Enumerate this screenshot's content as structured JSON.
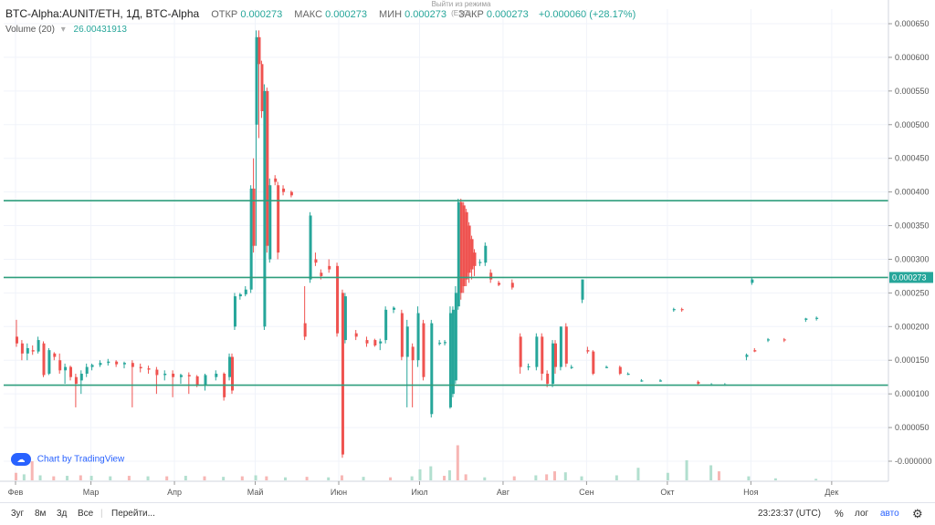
{
  "legend": {
    "symbol": "BTC-Alpha:AUNIT/ETH, 1Д, BTC-Alpha",
    "open_label": "ОТКР",
    "open": "0.000273",
    "high_label": "МАКС",
    "high": "0.000273",
    "low_label": "МИН",
    "low": "0.000273",
    "close_label": "ЗАКР",
    "close": "0.000273",
    "change": "+0.000060 (+28.17%)"
  },
  "volume": {
    "label": "Volume (20)",
    "value": "26.00431913"
  },
  "exit_hint": "Выйти из режима (ESC)",
  "tv_logo": "Chart by TradingView",
  "bottombar": {
    "timeframes": [
      "3уг",
      "8м",
      "3д",
      "Все"
    ],
    "goto": "Перейти...",
    "time": "23:23:37 (UTC)",
    "percent": "%",
    "log": "лог",
    "auto": "авто"
  },
  "colors": {
    "up": "#26a69a",
    "down": "#ef5350",
    "hline": "#2e9e7c",
    "price_tag": "#26a69a"
  },
  "chart_data": {
    "type": "candlestick",
    "x_labels": [
      "Фев",
      "Мар",
      "Апр",
      "Май",
      "Июн",
      "Июл",
      "Авг",
      "Сен",
      "Окт",
      "Ноя",
      "Дек"
    ],
    "y_ticks": [
      "0.000650",
      "0.000600",
      "0.000550",
      "0.000500",
      "0.000450",
      "0.000400",
      "0.000350",
      "0.000300",
      "0.000250",
      "0.000200",
      "0.000150",
      "0.000100",
      "0.000050",
      "-0.000000"
    ],
    "ylim": [
      0,
      0.00068
    ],
    "last_price_label": "0.000273",
    "horizontal_lines": [
      0.000387,
      0.000273,
      0.000113
    ],
    "grid": true,
    "candles": [
      {
        "d": "02-01",
        "o": 0.000185,
        "h": 0.00021,
        "l": 0.00017,
        "c": 0.000175
      },
      {
        "d": "02-03",
        "o": 0.000175,
        "h": 0.00018,
        "l": 0.00015,
        "c": 0.00016
      },
      {
        "d": "02-05",
        "o": 0.00016,
        "h": 0.000175,
        "l": 0.00015,
        "c": 0.000168
      },
      {
        "d": "02-07",
        "o": 0.000165,
        "h": 0.000172,
        "l": 0.000158,
        "c": 0.000163
      },
      {
        "d": "02-09",
        "o": 0.000163,
        "h": 0.000185,
        "l": 0.00016,
        "c": 0.00018
      },
      {
        "d": "02-11",
        "o": 0.000175,
        "h": 0.000178,
        "l": 0.000125,
        "c": 0.000128
      },
      {
        "d": "02-13",
        "o": 0.00013,
        "h": 0.000168,
        "l": 0.000128,
        "c": 0.000165
      },
      {
        "d": "02-15",
        "o": 0.00016,
        "h": 0.000162,
        "l": 0.00015,
        "c": 0.000155
      },
      {
        "d": "02-17",
        "o": 0.00015,
        "h": 0.00016,
        "l": 0.00013,
        "c": 0.000135
      },
      {
        "d": "02-19",
        "o": 0.000135,
        "h": 0.000145,
        "l": 0.000115,
        "c": 0.00014
      },
      {
        "d": "02-21",
        "o": 0.00014,
        "h": 0.000142,
        "l": 0.00012,
        "c": 0.000125
      },
      {
        "d": "02-23",
        "o": 0.000125,
        "h": 0.00013,
        "l": 8e-05,
        "c": 0.000115
      },
      {
        "d": "02-25",
        "o": 0.00012,
        "h": 0.000135,
        "l": 0.0001,
        "c": 0.00013
      },
      {
        "d": "02-27",
        "o": 0.00013,
        "h": 0.000145,
        "l": 0.000125,
        "c": 0.00014
      },
      {
        "d": "03-01",
        "o": 0.00014,
        "h": 0.000145,
        "l": 0.000135,
        "c": 0.000143
      },
      {
        "d": "03-04",
        "o": 0.000143,
        "h": 0.00015,
        "l": 0.00014,
        "c": 0.000146
      },
      {
        "d": "03-07",
        "o": 0.000146,
        "h": 0.000152,
        "l": 0.000142,
        "c": 0.000148
      },
      {
        "d": "03-10",
        "o": 0.000148,
        "h": 0.00015,
        "l": 0.00014,
        "c": 0.000144
      },
      {
        "d": "03-13",
        "o": 0.000144,
        "h": 0.000148,
        "l": 0.000138,
        "c": 0.000146
      },
      {
        "d": "03-16",
        "o": 0.000146,
        "h": 0.00015,
        "l": 8e-05,
        "c": 0.00014
      },
      {
        "d": "03-19",
        "o": 0.00014,
        "h": 0.000145,
        "l": 0.000132,
        "c": 0.000138
      },
      {
        "d": "03-22",
        "o": 0.000138,
        "h": 0.000142,
        "l": 0.00013,
        "c": 0.000136
      },
      {
        "d": "03-25",
        "o": 0.000136,
        "h": 0.00014,
        "l": 0.0001,
        "c": 0.000128
      },
      {
        "d": "03-28",
        "o": 0.000128,
        "h": 0.000135,
        "l": 0.00012,
        "c": 0.00013
      },
      {
        "d": "03-31",
        "o": 0.00013,
        "h": 0.000135,
        "l": 9.5e-05,
        "c": 0.000125
      },
      {
        "d": "04-03",
        "o": 0.000125,
        "h": 0.00013,
        "l": 0.000115,
        "c": 0.000128
      },
      {
        "d": "04-06",
        "o": 0.000128,
        "h": 0.000132,
        "l": 0.0001,
        "c": 0.000126
      },
      {
        "d": "04-09",
        "o": 0.000126,
        "h": 0.000128,
        "l": 0.00011,
        "c": 0.000112
      },
      {
        "d": "04-12",
        "o": 0.000112,
        "h": 0.00013,
        "l": 0.000105,
        "c": 0.000128
      },
      {
        "d": "04-16",
        "o": 0.000125,
        "h": 0.000135,
        "l": 0.00012,
        "c": 0.00013
      },
      {
        "d": "04-19",
        "o": 0.00013,
        "h": 0.000132,
        "l": 9e-05,
        "c": 9.5e-05
      },
      {
        "d": "04-21",
        "o": 0.000125,
        "h": 0.00016,
        "l": 0.00012,
        "c": 0.000155
      },
      {
        "d": "04-22",
        "o": 0.000155,
        "h": 0.00016,
        "l": 0.0001,
        "c": 0.000105
      },
      {
        "d": "04-23",
        "o": 0.0002,
        "h": 0.00025,
        "l": 0.000195,
        "c": 0.000245
      },
      {
        "d": "04-25",
        "o": 0.000245,
        "h": 0.00025,
        "l": 0.00024,
        "c": 0.000248
      },
      {
        "d": "04-27",
        "o": 0.000248,
        "h": 0.00026,
        "l": 0.000245,
        "c": 0.000255
      },
      {
        "d": "04-29",
        "o": 0.000255,
        "h": 0.00041,
        "l": 0.00025,
        "c": 0.000405
      },
      {
        "d": "04-30",
        "o": 0.000405,
        "h": 0.00045,
        "l": 0.00031,
        "c": 0.00032
      },
      {
        "d": "05-01",
        "o": 0.0005,
        "h": 0.00064,
        "l": 0.00032,
        "c": 0.00063
      },
      {
        "d": "05-02",
        "o": 0.00063,
        "h": 0.00064,
        "l": 0.00048,
        "c": 0.00059
      },
      {
        "d": "05-03",
        "o": 0.00059,
        "h": 0.000595,
        "l": 0.00051,
        "c": 0.00052
      },
      {
        "d": "05-04",
        "o": 0.0002,
        "h": 0.00056,
        "l": 0.000195,
        "c": 0.00055
      },
      {
        "d": "05-05",
        "o": 0.00055,
        "h": 0.000555,
        "l": 0.00031,
        "c": 0.00032
      },
      {
        "d": "05-06",
        "o": 0.0003,
        "h": 0.00042,
        "l": 0.000295,
        "c": 0.00041
      },
      {
        "d": "05-08",
        "o": 0.00042,
        "h": 0.000425,
        "l": 0.00041,
        "c": 0.000415
      },
      {
        "d": "05-09",
        "o": 0.00041,
        "h": 0.000415,
        "l": 0.0003,
        "c": 0.00031
      },
      {
        "d": "05-11",
        "o": 0.000405,
        "h": 0.00041,
        "l": 0.000395,
        "c": 0.0004
      },
      {
        "d": "05-14",
        "o": 0.0004,
        "h": 0.000402,
        "l": 0.000392,
        "c": 0.000395
      },
      {
        "d": "05-19",
        "o": 0.000205,
        "h": 0.00026,
        "l": 0.00018,
        "c": 0.000185
      },
      {
        "d": "05-21",
        "o": 0.00027,
        "h": 0.00037,
        "l": 0.000265,
        "c": 0.000365
      },
      {
        "d": "05-23",
        "o": 0.0003,
        "h": 0.00031,
        "l": 0.00029,
        "c": 0.000295
      },
      {
        "d": "05-25",
        "o": 0.00028,
        "h": 0.000285,
        "l": 0.00027,
        "c": 0.000275
      },
      {
        "d": "05-28",
        "o": 0.00029,
        "h": 0.0003,
        "l": 0.00028,
        "c": 0.000285
      },
      {
        "d": "05-31",
        "o": 0.00029,
        "h": 0.000295,
        "l": 0.000185,
        "c": 0.00019
      },
      {
        "d": "06-02",
        "o": 0.00025,
        "h": 0.000255,
        "l": 5e-06,
        "c": 1e-05
      },
      {
        "d": "06-03",
        "o": 0.00018,
        "h": 0.00025,
        "l": 0.000175,
        "c": 0.000245
      },
      {
        "d": "06-07",
        "o": 0.00019,
        "h": 0.000195,
        "l": 0.00018,
        "c": 0.000185
      },
      {
        "d": "06-11",
        "o": 0.00018,
        "h": 0.000185,
        "l": 0.00017,
        "c": 0.000175
      },
      {
        "d": "06-14",
        "o": 0.00018,
        "h": 0.000182,
        "l": 0.00017,
        "c": 0.000172
      },
      {
        "d": "06-16",
        "o": 0.000175,
        "h": 0.000182,
        "l": 0.000165,
        "c": 0.000178
      },
      {
        "d": "06-18",
        "o": 0.00018,
        "h": 0.00023,
        "l": 0.000175,
        "c": 0.000225
      },
      {
        "d": "06-21",
        "o": 0.000225,
        "h": 0.00023,
        "l": 0.00022,
        "c": 0.000228
      },
      {
        "d": "06-24",
        "o": 0.00022,
        "h": 0.000225,
        "l": 0.00015,
        "c": 0.000155
      },
      {
        "d": "06-26",
        "o": 0.000155,
        "h": 0.00021,
        "l": 8e-05,
        "c": 0.0002
      },
      {
        "d": "06-28",
        "o": 0.00017,
        "h": 0.000175,
        "l": 8e-05,
        "c": 0.00015
      },
      {
        "d": "06-30",
        "o": 0.00015,
        "h": 0.00023,
        "l": 0.00014,
        "c": 0.00022
      },
      {
        "d": "07-02",
        "o": 0.000205,
        "h": 0.00021,
        "l": 0.00012,
        "c": 0.000125
      },
      {
        "d": "07-05",
        "o": 7e-05,
        "h": 0.00021,
        "l": 6.5e-05,
        "c": 0.000205
      },
      {
        "d": "07-08",
        "o": 0.000175,
        "h": 0.00018,
        "l": 0.000172,
        "c": 0.000176
      },
      {
        "d": "07-10",
        "o": 0.000176,
        "h": 0.00018,
        "l": 0.000172,
        "c": 0.000177
      },
      {
        "d": "07-12",
        "o": 8e-05,
        "h": 0.00023,
        "l": 7.8e-05,
        "c": 0.00022
      },
      {
        "d": "07-13",
        "o": 0.0001,
        "h": 0.00023,
        "l": 9.5e-05,
        "c": 0.000225
      },
      {
        "d": "07-14",
        "o": 0.00012,
        "h": 0.00026,
        "l": 0.000115,
        "c": 0.00025
      },
      {
        "d": "07-15",
        "o": 0.00023,
        "h": 0.00039,
        "l": 0.000225,
        "c": 0.000385
      },
      {
        "d": "07-16",
        "o": 0.000385,
        "h": 0.00039,
        "l": 0.00024,
        "c": 0.00025
      },
      {
        "d": "07-17",
        "o": 0.00038,
        "h": 0.000385,
        "l": 0.00025,
        "c": 0.00026
      },
      {
        "d": "07-18",
        "o": 0.00037,
        "h": 0.000375,
        "l": 0.00026,
        "c": 0.00027
      },
      {
        "d": "07-19",
        "o": 0.00035,
        "h": 0.000355,
        "l": 0.000265,
        "c": 0.00028
      },
      {
        "d": "07-20",
        "o": 0.00033,
        "h": 0.000335,
        "l": 0.00027,
        "c": 0.000285
      },
      {
        "d": "07-21",
        "o": 0.00031,
        "h": 0.000315,
        "l": 0.000275,
        "c": 0.00029
      },
      {
        "d": "07-23",
        "o": 0.000295,
        "h": 0.0003,
        "l": 0.00029,
        "c": 0.000296
      },
      {
        "d": "07-25",
        "o": 0.000295,
        "h": 0.000325,
        "l": 0.00029,
        "c": 0.00032
      },
      {
        "d": "07-27",
        "o": 0.00028,
        "h": 0.000285,
        "l": 0.000265,
        "c": 0.00027
      },
      {
        "d": "07-30",
        "o": 0.000265,
        "h": 0.000268,
        "l": 0.00026,
        "c": 0.000262
      },
      {
        "d": "08-04",
        "o": 0.000265,
        "h": 0.00027,
        "l": 0.000255,
        "c": 0.000258
      },
      {
        "d": "08-07",
        "o": 0.000185,
        "h": 0.00019,
        "l": 0.00013,
        "c": 0.00014
      },
      {
        "d": "08-10",
        "o": 0.00014,
        "h": 0.000145,
        "l": 0.000135,
        "c": 0.000141
      },
      {
        "d": "08-13",
        "o": 0.00014,
        "h": 0.00019,
        "l": 0.000135,
        "c": 0.000185
      },
      {
        "d": "08-15",
        "o": 0.000185,
        "h": 0.00019,
        "l": 0.00012,
        "c": 0.00013
      },
      {
        "d": "08-17",
        "o": 0.00013,
        "h": 0.000135,
        "l": 0.00011,
        "c": 0.000115
      },
      {
        "d": "08-19",
        "o": 0.000115,
        "h": 0.00018,
        "l": 0.00011,
        "c": 0.000175
      },
      {
        "d": "08-20",
        "o": 0.000175,
        "h": 0.00018,
        "l": 0.00013,
        "c": 0.00014
      },
      {
        "d": "08-22",
        "o": 0.00014,
        "h": 0.0002,
        "l": 0.000135,
        "c": 0.0002
      },
      {
        "d": "08-24",
        "o": 0.0002,
        "h": 0.000205,
        "l": 0.00014,
        "c": 0.000145
      },
      {
        "d": "08-26",
        "o": 0.00014,
        "h": 0.000143,
        "l": 0.000137,
        "c": 0.00014
      },
      {
        "d": "08-30",
        "o": 0.00024,
        "h": 0.00027,
        "l": 0.000235,
        "c": 0.00027
      },
      {
        "d": "09-01",
        "o": 0.000165,
        "h": 0.00017,
        "l": 0.00016,
        "c": 0.000163
      },
      {
        "d": "09-03",
        "o": 0.000163,
        "h": 0.000165,
        "l": 0.000128,
        "c": 0.00013
      },
      {
        "d": "09-08",
        "o": 0.00014,
        "h": 0.000142,
        "l": 0.000138,
        "c": 0.00014
      },
      {
        "d": "09-13",
        "o": 0.00014,
        "h": 0.000142,
        "l": 0.000128,
        "c": 0.00013
      },
      {
        "d": "09-16",
        "o": 0.00013,
        "h": 0.000132,
        "l": 0.000128,
        "c": 0.00013
      },
      {
        "d": "09-21",
        "o": 0.00012,
        "h": 0.000122,
        "l": 0.000118,
        "c": 0.00012
      },
      {
        "d": "09-28",
        "o": 0.00012,
        "h": 0.000122,
        "l": 0.000118,
        "c": 0.00012
      },
      {
        "d": "10-03",
        "o": 0.000225,
        "h": 0.000228,
        "l": 0.000222,
        "c": 0.000226
      },
      {
        "d": "10-06",
        "o": 0.000226,
        "h": 0.000228,
        "l": 0.000222,
        "c": 0.000225
      },
      {
        "d": "10-12",
        "o": 0.000118,
        "h": 0.00012,
        "l": 0.000112,
        "c": 0.000115
      },
      {
        "d": "10-17",
        "o": 0.000114,
        "h": 0.000116,
        "l": 0.000112,
        "c": 0.000114
      },
      {
        "d": "10-22",
        "o": 0.000114,
        "h": 0.000116,
        "l": 0.000112,
        "c": 0.000114
      },
      {
        "d": "10-30",
        "o": 0.000155,
        "h": 0.00016,
        "l": 0.00015,
        "c": 0.000158
      },
      {
        "d": "11-02",
        "o": 0.000165,
        "h": 0.000168,
        "l": 0.000162,
        "c": 0.000163
      },
      {
        "d": "11-07",
        "o": 0.00018,
        "h": 0.000183,
        "l": 0.000177,
        "c": 0.000181
      },
      {
        "d": "11-13",
        "o": 0.000181,
        "h": 0.000183,
        "l": 0.000177,
        "c": 0.00018
      },
      {
        "d": "11-21",
        "o": 0.00021,
        "h": 0.000213,
        "l": 0.000207,
        "c": 0.000212
      },
      {
        "d": "11-25",
        "o": 0.000212,
        "h": 0.000215,
        "l": 0.000209,
        "c": 0.000213
      },
      {
        "d": "11-01",
        "o": 0.000265,
        "h": 0.000273,
        "l": 0.000262,
        "c": 0.00027
      }
    ],
    "volume_bars": [
      {
        "d": "02-01",
        "v": 15,
        "up": false
      },
      {
        "d": "02-04",
        "v": 12,
        "up": true
      },
      {
        "d": "02-07",
        "v": 38,
        "up": false
      },
      {
        "d": "02-10",
        "v": 10,
        "up": true
      },
      {
        "d": "02-15",
        "v": 8,
        "up": false
      },
      {
        "d": "02-20",
        "v": 9,
        "up": true
      },
      {
        "d": "02-25",
        "v": 10,
        "up": false
      },
      {
        "d": "03-01",
        "v": 9,
        "up": true
      },
      {
        "d": "03-08",
        "v": 8,
        "up": true
      },
      {
        "d": "03-15",
        "v": 9,
        "up": false
      },
      {
        "d": "03-22",
        "v": 8,
        "up": true
      },
      {
        "d": "03-29",
        "v": 8,
        "up": false
      },
      {
        "d": "04-05",
        "v": 9,
        "up": true
      },
      {
        "d": "04-12",
        "v": 8,
        "up": false
      },
      {
        "d": "04-19",
        "v": 7,
        "up": true
      },
      {
        "d": "04-26",
        "v": 8,
        "up": false
      },
      {
        "d": "05-01",
        "v": 10,
        "up": true
      },
      {
        "d": "05-05",
        "v": 8,
        "up": false
      },
      {
        "d": "05-12",
        "v": 6,
        "up": true
      },
      {
        "d": "05-20",
        "v": 7,
        "up": false
      },
      {
        "d": "05-28",
        "v": 6,
        "up": true
      },
      {
        "d": "06-02",
        "v": 10,
        "up": false
      },
      {
        "d": "06-10",
        "v": 7,
        "up": true
      },
      {
        "d": "06-20",
        "v": 6,
        "up": false
      },
      {
        "d": "06-28",
        "v": 8,
        "up": true
      },
      {
        "d": "07-01",
        "v": 22,
        "up": true
      },
      {
        "d": "07-05",
        "v": 28,
        "up": true
      },
      {
        "d": "07-10",
        "v": 9,
        "up": false
      },
      {
        "d": "07-12",
        "v": 20,
        "up": true
      },
      {
        "d": "07-15",
        "v": 70,
        "up": false
      },
      {
        "d": "07-18",
        "v": 12,
        "up": false
      },
      {
        "d": "07-25",
        "v": 6,
        "up": true
      },
      {
        "d": "08-05",
        "v": 8,
        "up": false
      },
      {
        "d": "08-13",
        "v": 10,
        "up": true
      },
      {
        "d": "08-17",
        "v": 12,
        "up": false
      },
      {
        "d": "08-20",
        "v": 18,
        "up": false
      },
      {
        "d": "08-24",
        "v": 16,
        "up": true
      },
      {
        "d": "08-30",
        "v": 8,
        "up": true
      },
      {
        "d": "09-12",
        "v": 10,
        "up": true
      },
      {
        "d": "09-20",
        "v": 25,
        "up": true
      },
      {
        "d": "10-01",
        "v": 15,
        "up": true
      },
      {
        "d": "10-08",
        "v": 40,
        "up": true
      },
      {
        "d": "10-17",
        "v": 30,
        "up": true
      },
      {
        "d": "10-20",
        "v": 18,
        "up": false
      },
      {
        "d": "10-31",
        "v": 8,
        "up": true
      },
      {
        "d": "11-10",
        "v": 4,
        "up": true
      },
      {
        "d": "11-25",
        "v": 3,
        "up": true
      }
    ]
  }
}
